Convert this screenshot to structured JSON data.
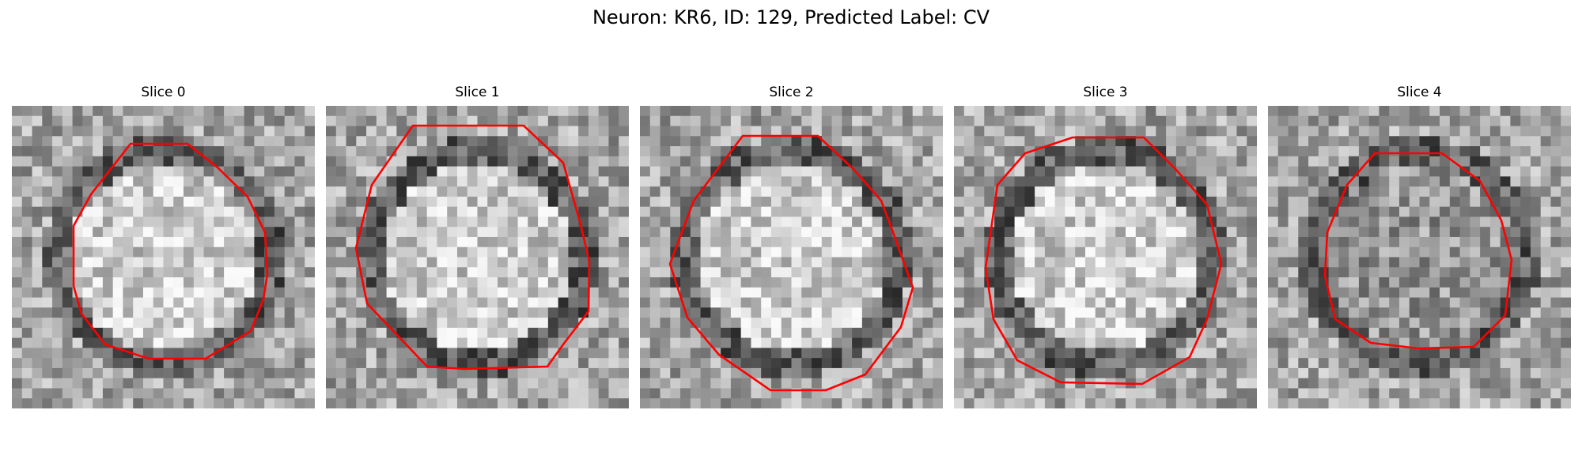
{
  "figure": {
    "title": "Neuron: KR6, ID: 129, Predicted Label: CV"
  },
  "contour_color": "#ff0000",
  "grid_size": 30,
  "panels": [
    {
      "label": "Slice 0",
      "image": "grayscale-microscopy-slice",
      "seed": 11,
      "interior": "bright",
      "rim": "dark"
    },
    {
      "label": "Slice 1",
      "image": "grayscale-microscopy-slice",
      "seed": 23,
      "interior": "bright",
      "rim": "dark"
    },
    {
      "label": "Slice 2",
      "image": "grayscale-microscopy-slice",
      "seed": 37,
      "interior": "bright",
      "rim": "dark"
    },
    {
      "label": "Slice 3",
      "image": "grayscale-microscopy-slice",
      "seed": 41,
      "interior": "bright",
      "rim": "dark"
    },
    {
      "label": "Slice 4",
      "image": "grayscale-microscopy-slice",
      "seed": 53,
      "interior": "medium",
      "rim": "dark"
    }
  ]
}
